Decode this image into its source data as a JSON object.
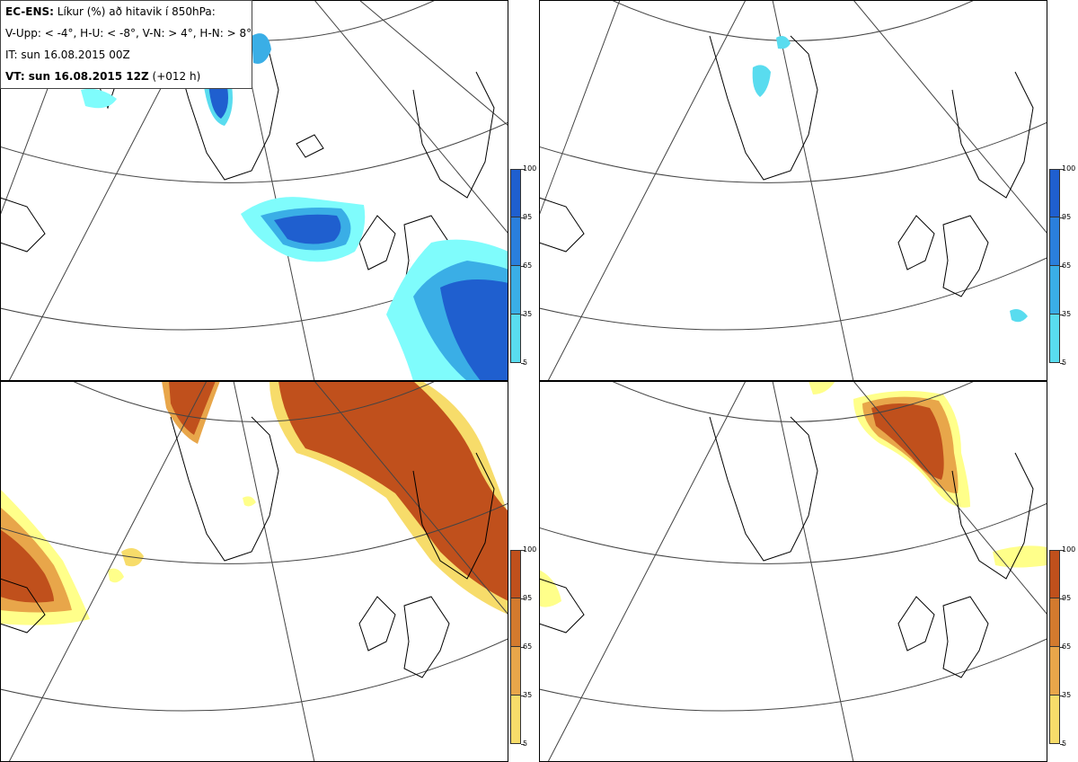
{
  "info": {
    "line1_bold": "EC-ENS:",
    "line1_rest": " Líkur (%) að hitavik í 850hPa:",
    "line2": "V-Upp: < -4°, H-U: < -8°, V-N: > 4°, H-N: > 8°",
    "line3": "IT: sun 16.08.2015 00Z",
    "line4_bold": "VT: sun 16.08.2015 12Z",
    "line4_rest": " (+012 h)"
  },
  "colorbar_labels": [
    "100",
    "95",
    "65",
    "35",
    "5"
  ],
  "colors": {
    "cold_scale": [
      "#7ffcfc",
      "#59dcef",
      "#3aaee6",
      "#2a7fdc",
      "#1f5fcf"
    ],
    "warm_scale": [
      "#ffff8a",
      "#f7dc6a",
      "#e8a64a",
      "#d37a2e",
      "#c0501c"
    ],
    "coast": "#000000",
    "grid": "#444444"
  },
  "panels": [
    {
      "name": "cold-anomaly-4",
      "scale": "cold"
    },
    {
      "name": "cold-anomaly-8",
      "scale": "cold"
    },
    {
      "name": "warm-anomaly-4",
      "scale": "warm"
    },
    {
      "name": "warm-anomaly-8",
      "scale": "warm"
    }
  ]
}
